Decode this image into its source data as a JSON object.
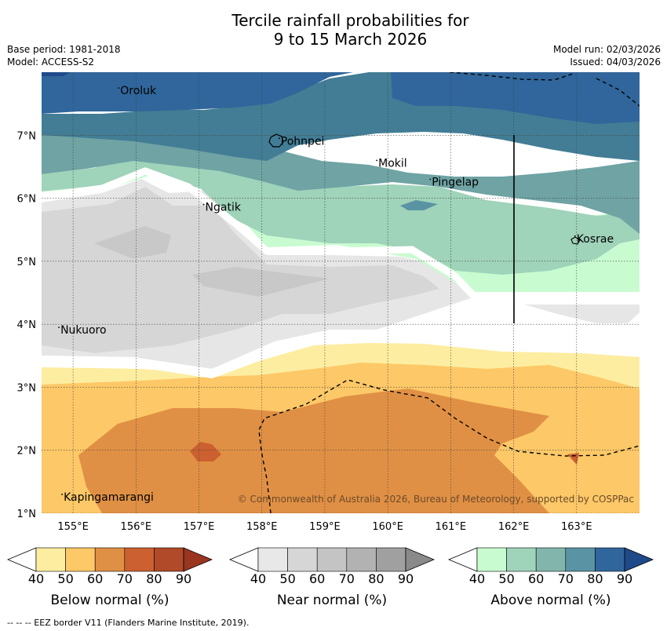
{
  "title_line1": "Tercile rainfall probabilities for",
  "title_line2": "9 to 15 March 2026",
  "base_period": "Base period: 1981-2018",
  "model": "Model: ACCESS-S2",
  "model_run": "Model run: 02/03/2026",
  "issued": "Issued: 04/03/2026",
  "map": {
    "lon_range": [
      154.5,
      164
    ],
    "lat_range": [
      1,
      8
    ],
    "lon_ticks": [
      "155°E",
      "156°E",
      "157°E",
      "158°E",
      "159°E",
      "160°E",
      "161°E",
      "162°E",
      "163°E"
    ],
    "lat_ticks": [
      "1°N",
      "2°N",
      "3°N",
      "4°N",
      "5°N",
      "6°N",
      "7°N"
    ],
    "places": [
      {
        "name": "Oroluk",
        "lon": 155.75,
        "lat": 7.65
      },
      {
        "name": "Pohnpei",
        "lon": 158.3,
        "lat": 6.85
      },
      {
        "name": "Mokil",
        "lon": 159.85,
        "lat": 6.5
      },
      {
        "name": "Pingelap",
        "lon": 160.7,
        "lat": 6.2
      },
      {
        "name": "Ngatik",
        "lon": 157.1,
        "lat": 5.8
      },
      {
        "name": "Kosrae",
        "lon": 163,
        "lat": 5.3
      },
      {
        "name": "Nukuoro",
        "lon": 154.8,
        "lat": 3.85
      },
      {
        "name": "Kapingamarangi",
        "lon": 154.85,
        "lat": 1.2
      }
    ],
    "copyright": "© Commonwealth of Australia 2026, Bureau of Meteorology, supported by COSPPac"
  },
  "colorbars": [
    {
      "label": "Below normal (%)",
      "ticks": [
        "40",
        "50",
        "60",
        "70",
        "80",
        "90"
      ],
      "colors": [
        "#ffffff",
        "#fdeda0",
        "#fdc867",
        "#e09044",
        "#cc6030",
        "#b04a28",
        "#9a3520"
      ]
    },
    {
      "label": "Near normal (%)",
      "ticks": [
        "40",
        "50",
        "60",
        "70",
        "80",
        "90"
      ],
      "colors": [
        "#ffffff",
        "#e8e8e8",
        "#d6d6d6",
        "#c4c4c4",
        "#b2b2b2",
        "#a0a0a0",
        "#8a8a8a"
      ]
    },
    {
      "label": "Above normal (%)",
      "ticks": [
        "40",
        "50",
        "60",
        "70",
        "80",
        "90"
      ],
      "colors": [
        "#ffffff",
        "#c8fcd0",
        "#9fd3ba",
        "#82b6ac",
        "#5a93a3",
        "#30669b",
        "#1e4a8a"
      ]
    }
  ],
  "footer": "--  --  -- EEZ border V11 (Flanders Marine Institute, 2019)."
}
